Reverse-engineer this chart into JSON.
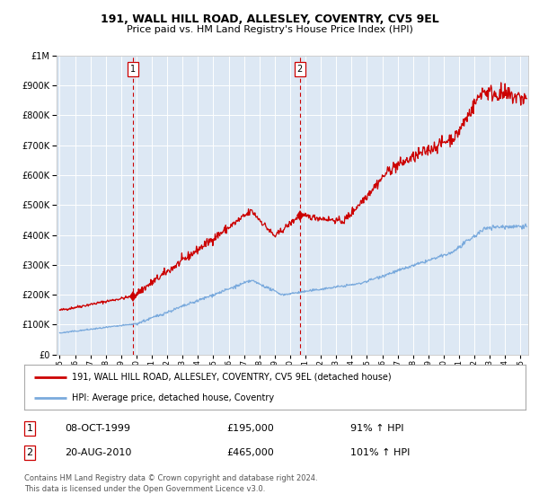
{
  "title": "191, WALL HILL ROAD, ALLESLEY, COVENTRY, CV5 9EL",
  "subtitle": "Price paid vs. HM Land Registry's House Price Index (HPI)",
  "background_color": "#ffffff",
  "plot_bg_color": "#dde8f4",
  "grid_color": "#ffffff",
  "red_line_color": "#cc0000",
  "blue_line_color": "#7aaadd",
  "sale1_date_x": 1999.77,
  "sale1_price": 195000,
  "sale2_date_x": 2010.63,
  "sale2_price": 465000,
  "sale1_label": "08-OCT-1999",
  "sale2_label": "20-AUG-2010",
  "sale1_text": "£195,000",
  "sale2_text": "£465,000",
  "sale1_hpi": "91% ↑ HPI",
  "sale2_hpi": "101% ↑ HPI",
  "legend_red": "191, WALL HILL ROAD, ALLESLEY, COVENTRY, CV5 9EL (detached house)",
  "legend_blue": "HPI: Average price, detached house, Coventry",
  "footer": "Contains HM Land Registry data © Crown copyright and database right 2024.\nThis data is licensed under the Open Government Licence v3.0.",
  "ylim": [
    0,
    1000000
  ],
  "xlim_start": 1994.8,
  "xlim_end": 2025.5
}
